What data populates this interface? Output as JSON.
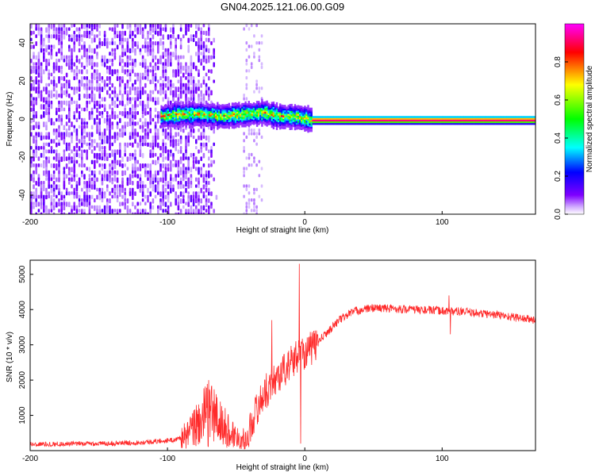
{
  "title": "GN04.2025.121.06.00.G09",
  "chart_data": [
    {
      "type": "heatmap",
      "xlabel": "Height of straight line (km)",
      "ylabel": "Frequency (Hz)",
      "xlim": [
        -200,
        168
      ],
      "ylim": [
        -50,
        50
      ],
      "xticks": [
        -200,
        -100,
        0,
        100
      ],
      "yticks": [
        -40,
        -20,
        0,
        20,
        40
      ],
      "colorbar": {
        "label": "Normalized spectral amplitude",
        "range": [
          0,
          1
        ],
        "ticks": [
          0.0,
          0.2,
          0.4,
          0.6,
          0.8
        ],
        "colors": [
          "#ffffff",
          "#7f00ff",
          "#0000ff",
          "#00ffff",
          "#00ff00",
          "#ffff00",
          "#ff0000",
          "#ff00ff"
        ]
      },
      "ridge": [
        {
          "x": -105,
          "y": 2
        },
        {
          "x": -90,
          "y": 3
        },
        {
          "x": -75,
          "y": 3
        },
        {
          "x": -60,
          "y": 2
        },
        {
          "x": -45,
          "y": 3
        },
        {
          "x": -30,
          "y": 4
        },
        {
          "x": -20,
          "y": 2
        },
        {
          "x": -10,
          "y": 2
        },
        {
          "x": 0,
          "y": 1
        },
        {
          "x": 5,
          "y": 0
        },
        {
          "x": 168,
          "y": 0
        }
      ],
      "noise_region_x": [
        -200,
        -70
      ],
      "sparse_region_x": [
        -45,
        -32
      ]
    },
    {
      "type": "line",
      "xlabel": "Height of straight line (km)",
      "ylabel": "SNR (10 * v/v)",
      "xlim": [
        -200,
        168
      ],
      "ylim": [
        0,
        5400
      ],
      "xticks": [
        -200,
        -100,
        0,
        100
      ],
      "yticks": [
        1000,
        2000,
        3000,
        4000,
        5000
      ],
      "color": "#ff2a2a",
      "envelope": [
        {
          "x": -200,
          "y": 180
        },
        {
          "x": -150,
          "y": 200
        },
        {
          "x": -120,
          "y": 230
        },
        {
          "x": -95,
          "y": 300
        },
        {
          "x": -85,
          "y": 450
        },
        {
          "x": -75,
          "y": 900
        },
        {
          "x": -68,
          "y": 1100
        },
        {
          "x": -60,
          "y": 700
        },
        {
          "x": -50,
          "y": 400
        },
        {
          "x": -42,
          "y": 300
        },
        {
          "x": -38,
          "y": 900
        },
        {
          "x": -30,
          "y": 1600
        },
        {
          "x": -20,
          "y": 2100
        },
        {
          "x": -12,
          "y": 2400
        },
        {
          "x": -5,
          "y": 2700
        },
        {
          "x": 5,
          "y": 2900
        },
        {
          "x": 15,
          "y": 3300
        },
        {
          "x": 25,
          "y": 3700
        },
        {
          "x": 35,
          "y": 3950
        },
        {
          "x": 50,
          "y": 4050
        },
        {
          "x": 80,
          "y": 4000
        },
        {
          "x": 110,
          "y": 3950
        },
        {
          "x": 140,
          "y": 3850
        },
        {
          "x": 168,
          "y": 3700
        }
      ],
      "spikes": [
        {
          "x": -70,
          "y": 2000
        },
        {
          "x": -24,
          "y": 3700
        },
        {
          "x": -4,
          "y": 5300
        },
        {
          "x": -3,
          "y": 200
        },
        {
          "x": 105,
          "y": 4400
        },
        {
          "x": 106,
          "y": 3300
        }
      ]
    }
  ]
}
